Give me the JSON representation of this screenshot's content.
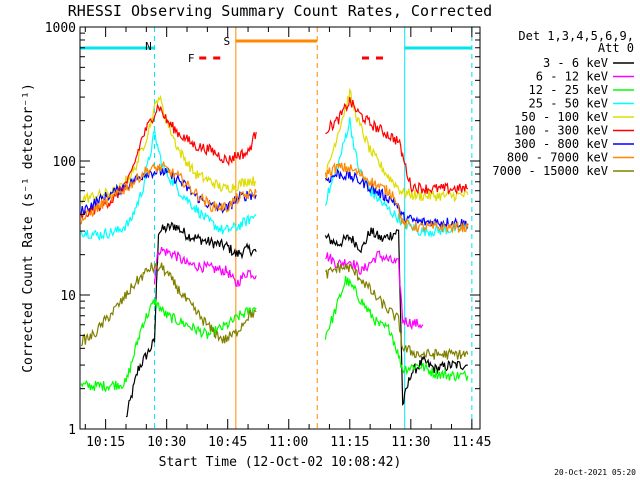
{
  "chart_data": {
    "type": "line",
    "title": "RHESSI Observing Summary Count Rates, Corrected",
    "xlabel": "Start Time (12-Oct-02 10:08:42)",
    "ylabel": "Corrected Count Rate (s⁻¹ detector⁻¹)",
    "y_scale": "log",
    "ylim": [
      1,
      1000
    ],
    "xlim": [
      "10:08:42",
      "11:47:00"
    ],
    "x_ticks": [
      "10:15",
      "10:30",
      "10:45",
      "11:00",
      "11:15",
      "11:30",
      "11:45"
    ],
    "y_ticks": [
      "1",
      "10",
      "100",
      "1000"
    ],
    "legend_header": [
      "Det 1,3,4,5,6,9,",
      "Att 0"
    ],
    "legend_position": "top-right",
    "footer_date": "20-Oct-2021 05:20",
    "data_gap": [
      "10:53:00",
      "11:08:30"
    ],
    "markers": {
      "night_bars": [
        [
          "10:08:42",
          "10:27:00"
        ],
        [
          "11:28:30",
          "11:45:00"
        ]
      ],
      "night_label": "N",
      "saa_bar": [
        "10:47:00",
        "11:07:00"
      ],
      "saa_label": "S",
      "flare_dashes": [
        [
          "10:38:00",
          "10:44:00"
        ],
        [
          "11:18:00",
          "11:24:00"
        ]
      ],
      "flare_label": "F",
      "cyan_solid_lines": [
        "10:08:42",
        "11:28:30"
      ],
      "cyan_dashed_lines": [
        "10:27:00",
        "11:45:00"
      ],
      "orange_solid_lines": [
        "10:47:00"
      ],
      "orange_dashed_lines": [
        "11:07:00"
      ]
    },
    "series": [
      {
        "name": "3 - 6 keV",
        "color": "#000000",
        "points": [
          [
            "10:20",
            "1.2"
          ],
          [
            "10:23",
            "2.8"
          ],
          [
            "10:27",
            "4.5"
          ],
          [
            "10:28",
            "30"
          ],
          [
            "10:32",
            "33"
          ],
          [
            "10:35",
            "28"
          ],
          [
            "10:40",
            "25"
          ],
          [
            "10:45",
            "23"
          ],
          [
            "10:47",
            "20"
          ],
          [
            "10:50",
            "22"
          ],
          [
            "10:52",
            "21"
          ],
          [
            "11:09",
            "27"
          ],
          [
            "11:12",
            "24"
          ],
          [
            "11:15",
            "27"
          ],
          [
            "11:18",
            "22"
          ],
          [
            "11:20",
            "30"
          ],
          [
            "11:23",
            "26"
          ],
          [
            "11:25",
            "28"
          ],
          [
            "11:27",
            "30"
          ],
          [
            "11:28",
            "1.5"
          ],
          [
            "11:30",
            "2.6"
          ],
          [
            "11:33",
            "3.2"
          ],
          [
            "11:36",
            "2.8"
          ],
          [
            "11:40",
            "3.0"
          ],
          [
            "11:44",
            "3.0"
          ]
        ]
      },
      {
        "name": "6 - 12 keV",
        "color": "#ff00ff",
        "points": [
          [
            "10:27",
            "13"
          ],
          [
            "10:28",
            "22"
          ],
          [
            "10:32",
            "20"
          ],
          [
            "10:35",
            "17"
          ],
          [
            "10:40",
            "16"
          ],
          [
            "10:45",
            "15"
          ],
          [
            "10:47",
            "12"
          ],
          [
            "10:50",
            "15"
          ],
          [
            "10:52",
            "14"
          ],
          [
            "11:09",
            "20"
          ],
          [
            "11:12",
            "17"
          ],
          [
            "11:15",
            "18"
          ],
          [
            "11:18",
            "15"
          ],
          [
            "11:22",
            "20"
          ],
          [
            "11:25",
            "18"
          ],
          [
            "11:27",
            "17"
          ],
          [
            "11:28",
            "6.5"
          ],
          [
            "11:30",
            "6.2"
          ],
          [
            "11:33",
            "6.0"
          ]
        ]
      },
      {
        "name": "12 - 25 keV",
        "color": "#00ff00",
        "points": [
          [
            "10:09",
            "2.1"
          ],
          [
            "10:15",
            "2.1"
          ],
          [
            "10:20",
            "2.2"
          ],
          [
            "10:24",
            "6"
          ],
          [
            "10:27",
            "9"
          ],
          [
            "10:30",
            "7"
          ],
          [
            "10:35",
            "6"
          ],
          [
            "10:40",
            "5"
          ],
          [
            "10:45",
            "6"
          ],
          [
            "10:48",
            "7"
          ],
          [
            "10:50",
            "7.5"
          ],
          [
            "10:52",
            "8"
          ],
          [
            "11:09",
            "5"
          ],
          [
            "11:11",
            "7"
          ],
          [
            "11:14",
            "13"
          ],
          [
            "11:16",
            "11"
          ],
          [
            "11:19",
            "8"
          ],
          [
            "11:22",
            "6"
          ],
          [
            "11:25",
            "5.5"
          ],
          [
            "11:28",
            "2.8"
          ],
          [
            "11:32",
            "3"
          ],
          [
            "11:36",
            "2.6"
          ],
          [
            "11:40",
            "2.5"
          ],
          [
            "11:44",
            "2.5"
          ]
        ]
      },
      {
        "name": "25 - 50 keV",
        "color": "#00ffff",
        "points": [
          [
            "10:09",
            "30"
          ],
          [
            "10:13",
            "28"
          ],
          [
            "10:18",
            "30"
          ],
          [
            "10:21",
            "35"
          ],
          [
            "10:24",
            "60"
          ],
          [
            "10:27",
            "160"
          ],
          [
            "10:29",
            "90"
          ],
          [
            "10:33",
            "60"
          ],
          [
            "10:36",
            "48"
          ],
          [
            "10:40",
            "36"
          ],
          [
            "10:44",
            "30"
          ],
          [
            "10:47",
            "32"
          ],
          [
            "10:50",
            "36"
          ],
          [
            "10:52",
            "40"
          ],
          [
            "11:09",
            "50"
          ],
          [
            "11:12",
            "90"
          ],
          [
            "11:15",
            "200"
          ],
          [
            "11:17",
            "90"
          ],
          [
            "11:20",
            "60"
          ],
          [
            "11:24",
            "45"
          ],
          [
            "11:28",
            "35"
          ],
          [
            "11:32",
            "30"
          ],
          [
            "11:36",
            "30"
          ],
          [
            "11:40",
            "31"
          ],
          [
            "11:44",
            "32"
          ]
        ]
      },
      {
        "name": "50 - 100 keV",
        "color": "#dddd00",
        "points": [
          [
            "10:09",
            "52"
          ],
          [
            "10:13",
            "55"
          ],
          [
            "10:18",
            "60"
          ],
          [
            "10:22",
            "85"
          ],
          [
            "10:25",
            "150"
          ],
          [
            "10:28",
            "310"
          ],
          [
            "10:30",
            "200"
          ],
          [
            "10:33",
            "120"
          ],
          [
            "10:37",
            "80"
          ],
          [
            "10:41",
            "70"
          ],
          [
            "10:44",
            "62"
          ],
          [
            "10:47",
            "65"
          ],
          [
            "10:50",
            "72"
          ],
          [
            "10:52",
            "70"
          ],
          [
            "11:09",
            "75"
          ],
          [
            "11:12",
            "160"
          ],
          [
            "11:15",
            "320"
          ],
          [
            "11:17",
            "200"
          ],
          [
            "11:20",
            "120"
          ],
          [
            "11:24",
            "80"
          ],
          [
            "11:28",
            "58"
          ],
          [
            "11:32",
            "55"
          ],
          [
            "11:36",
            "55"
          ],
          [
            "11:40",
            "55"
          ],
          [
            "11:44",
            "56"
          ]
        ]
      },
      {
        "name": "100 - 300 keV",
        "color": "#ff0000",
        "points": [
          [
            "10:09",
            "38"
          ],
          [
            "10:13",
            "45"
          ],
          [
            "10:17",
            "52"
          ],
          [
            "10:21",
            "75"
          ],
          [
            "10:24",
            "150"
          ],
          [
            "10:28",
            "260"
          ],
          [
            "10:30",
            "200"
          ],
          [
            "10:33",
            "160"
          ],
          [
            "10:37",
            "130"
          ],
          [
            "10:41",
            "120"
          ],
          [
            "10:45",
            "100"
          ],
          [
            "10:47",
            "110"
          ],
          [
            "10:50",
            "115"
          ],
          [
            "10:52",
            "165"
          ],
          [
            "11:09",
            "170"
          ],
          [
            "11:12",
            "200"
          ],
          [
            "11:15",
            "280"
          ],
          [
            "11:17",
            "230"
          ],
          [
            "11:20",
            "190"
          ],
          [
            "11:24",
            "160"
          ],
          [
            "11:27",
            "140"
          ],
          [
            "11:30",
            "65"
          ],
          [
            "11:34",
            "62"
          ],
          [
            "11:38",
            "62"
          ],
          [
            "11:44",
            "62"
          ]
        ]
      },
      {
        "name": "300 - 800 keV",
        "color": "#0000ff",
        "points": [
          [
            "10:09",
            "42"
          ],
          [
            "10:13",
            "50"
          ],
          [
            "10:17",
            "58"
          ],
          [
            "10:21",
            "68"
          ],
          [
            "10:25",
            "82"
          ],
          [
            "10:29",
            "84"
          ],
          [
            "10:33",
            "72"
          ],
          [
            "10:37",
            "55"
          ],
          [
            "10:41",
            "46"
          ],
          [
            "10:45",
            "44"
          ],
          [
            "10:47",
            "52"
          ],
          [
            "10:50",
            "56"
          ],
          [
            "10:52",
            "56"
          ],
          [
            "11:09",
            "72"
          ],
          [
            "11:12",
            "80"
          ],
          [
            "11:15",
            "77"
          ],
          [
            "11:18",
            "70"
          ],
          [
            "11:22",
            "58"
          ],
          [
            "11:26",
            "50"
          ],
          [
            "11:28",
            "38"
          ],
          [
            "11:32",
            "35"
          ],
          [
            "11:36",
            "35"
          ],
          [
            "11:40",
            "35"
          ],
          [
            "11:44",
            "34"
          ]
        ]
      },
      {
        "name": "800 - 7000 keV",
        "color": "#ff8800",
        "points": [
          [
            "10:09",
            "36"
          ],
          [
            "10:13",
            "45"
          ],
          [
            "10:17",
            "54"
          ],
          [
            "10:21",
            "66"
          ],
          [
            "10:25",
            "85"
          ],
          [
            "10:29",
            "90"
          ],
          [
            "10:33",
            "76"
          ],
          [
            "10:37",
            "58"
          ],
          [
            "10:41",
            "46"
          ],
          [
            "10:45",
            "45"
          ],
          [
            "10:47",
            "52"
          ],
          [
            "10:50",
            "56"
          ],
          [
            "10:52",
            "58"
          ],
          [
            "11:09",
            "80"
          ],
          [
            "11:12",
            "90"
          ],
          [
            "11:15",
            "88"
          ],
          [
            "11:18",
            "78"
          ],
          [
            "11:22",
            "65"
          ],
          [
            "11:26",
            "56"
          ],
          [
            "11:28",
            "34"
          ],
          [
            "11:32",
            "32"
          ],
          [
            "11:36",
            "32"
          ],
          [
            "11:40",
            "32"
          ],
          [
            "11:44",
            "32"
          ]
        ]
      },
      {
        "name": "7000 - 15000 keV",
        "color": "#808000",
        "points": [
          [
            "10:09",
            "4.5"
          ],
          [
            "10:12",
            "5.0"
          ],
          [
            "10:15",
            "6.5"
          ],
          [
            "10:19",
            "9.0"
          ],
          [
            "10:22",
            "12"
          ],
          [
            "10:26",
            "16"
          ],
          [
            "10:29",
            "16"
          ],
          [
            "10:32",
            "12"
          ],
          [
            "10:35",
            "9"
          ],
          [
            "10:38",
            "7"
          ],
          [
            "10:41",
            "5.5"
          ],
          [
            "10:44",
            "4.6"
          ],
          [
            "10:47",
            "5.2"
          ],
          [
            "10:50",
            "7"
          ],
          [
            "10:52",
            "7.5"
          ],
          [
            "11:09",
            "14"
          ],
          [
            "11:12",
            "16"
          ],
          [
            "11:15",
            "16"
          ],
          [
            "11:18",
            "13"
          ],
          [
            "11:21",
            "10"
          ],
          [
            "11:24",
            "8"
          ],
          [
            "11:27",
            "6.5"
          ],
          [
            "11:28",
            "4"
          ],
          [
            "11:32",
            "3.6"
          ],
          [
            "11:36",
            "3.6"
          ],
          [
            "11:40",
            "3.6"
          ],
          [
            "11:44",
            "3.6"
          ]
        ]
      }
    ]
  }
}
